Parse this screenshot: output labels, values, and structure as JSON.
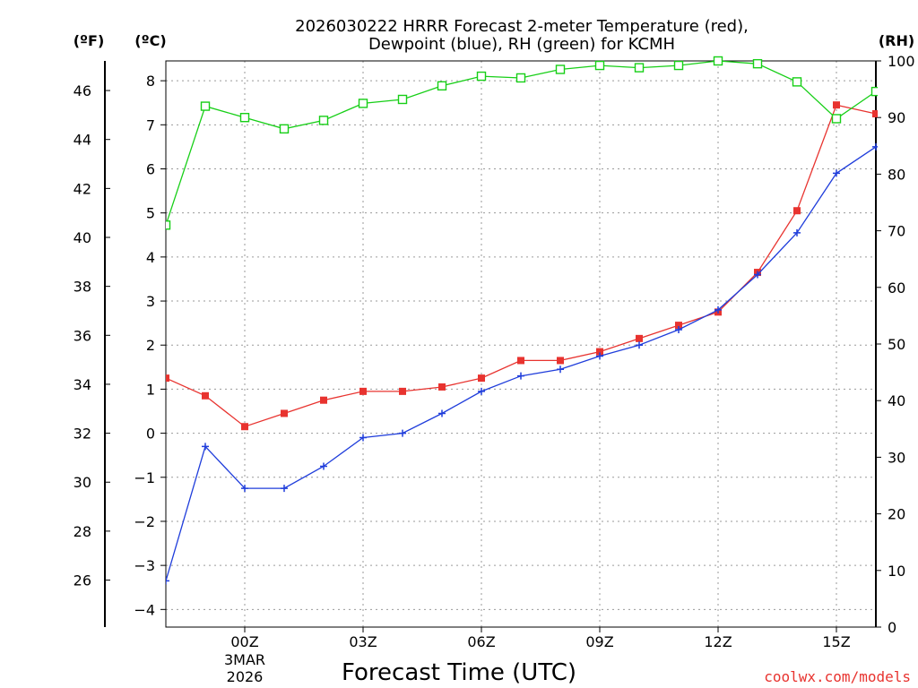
{
  "chart_data": {
    "type": "line",
    "title_line1": "2026030222 HRRR Forecast 2-meter Temperature (red),",
    "title_line2": "Dewpoint (blue), RH (green) for KCMH",
    "xlabel": "Forecast Time (UTC)",
    "credit": "coolwx.com/models",
    "units": {
      "fahrenheit": "(ºF)",
      "celsius": "(ºC)",
      "rh": "(RH)"
    },
    "x_range": [
      -2,
      16
    ],
    "x_ticks": [
      {
        "x": 0,
        "label": "00Z",
        "sub1": "3MAR",
        "sub2": "2026"
      },
      {
        "x": 3,
        "label": "03Z"
      },
      {
        "x": 6,
        "label": "06Z"
      },
      {
        "x": 9,
        "label": "09Z"
      },
      {
        "x": 12,
        "label": "12Z"
      },
      {
        "x": 15,
        "label": "15Z"
      }
    ],
    "ylim_c": [
      -4.4,
      8.45
    ],
    "celsius_ticks": [
      -4,
      -3,
      -2,
      -1,
      0,
      1,
      2,
      3,
      4,
      5,
      6,
      7,
      8
    ],
    "fahrenheit_ticks": [
      26,
      28,
      30,
      32,
      34,
      36,
      38,
      40,
      42,
      44,
      46
    ],
    "rh_range": [
      0,
      100
    ],
    "rh_ticks": [
      0,
      10,
      20,
      30,
      40,
      50,
      60,
      70,
      80,
      90,
      100
    ],
    "hours": [
      -2,
      -1,
      0,
      1,
      2,
      3,
      4,
      5,
      6,
      7,
      8,
      9,
      10,
      11,
      12,
      13,
      14,
      15,
      16
    ],
    "series": [
      {
        "name": "Temperature",
        "unit": "C",
        "color": "#e8332f",
        "marker": "filled-square",
        "values": [
          1.25,
          0.85,
          0.15,
          0.45,
          0.75,
          0.95,
          0.95,
          1.05,
          1.25,
          1.65,
          1.65,
          1.85,
          2.15,
          2.45,
          2.75,
          3.65,
          5.05,
          7.45,
          7.25
        ]
      },
      {
        "name": "Dewpoint",
        "unit": "C",
        "color": "#1f3ddb",
        "marker": "plus",
        "values": [
          -3.35,
          -0.3,
          -1.25,
          -1.25,
          -0.75,
          -0.1,
          0.0,
          0.45,
          0.95,
          1.3,
          1.45,
          1.75,
          2.0,
          2.35,
          2.8,
          3.6,
          4.55,
          5.9,
          6.5
        ]
      },
      {
        "name": "RH",
        "unit": "%",
        "color": "#17cf17",
        "marker": "open-square",
        "values": [
          71,
          92,
          90,
          88,
          89.5,
          92.5,
          93.2,
          95.6,
          97.3,
          97,
          98.5,
          99.2,
          98.8,
          99.2,
          100,
          99.5,
          96.3,
          89.8,
          94.6
        ]
      }
    ]
  }
}
